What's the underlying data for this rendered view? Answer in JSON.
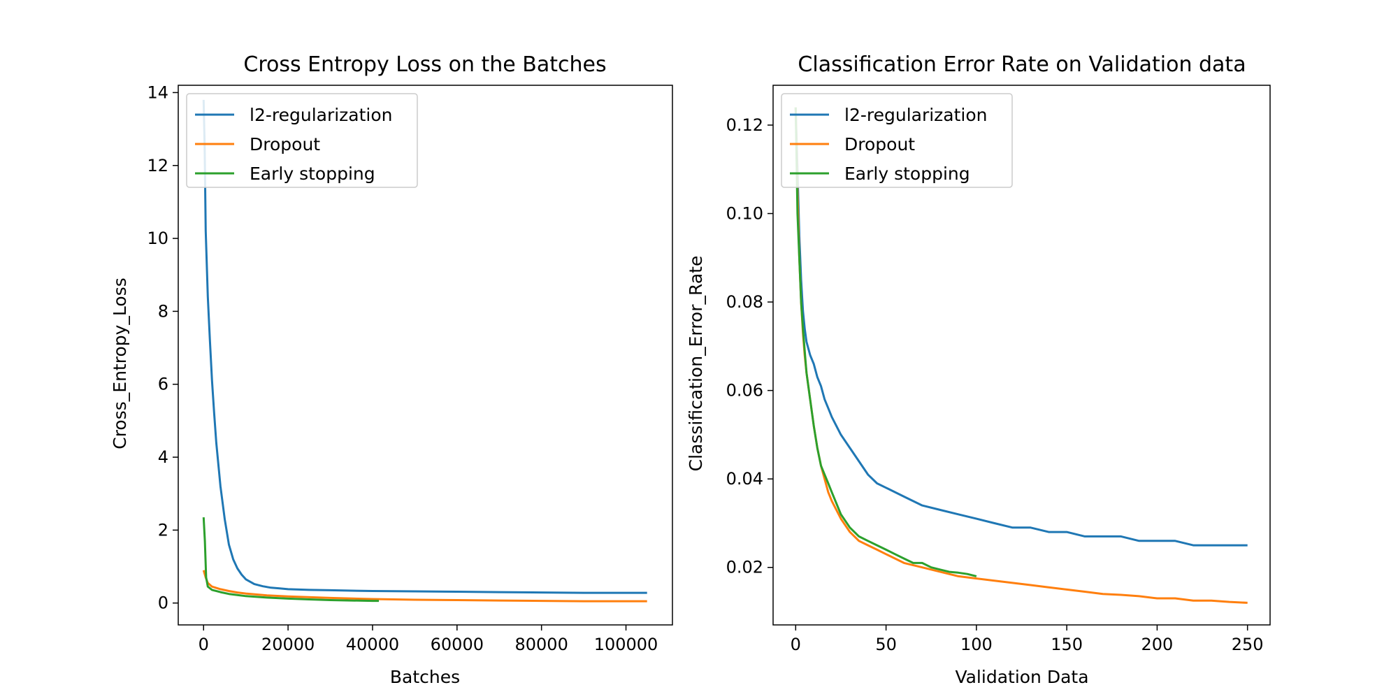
{
  "colors": {
    "l2": "#1f77b4",
    "dropout": "#ff7f0e",
    "early": "#2ca02c"
  },
  "chart_data": [
    {
      "type": "line",
      "title": "Cross Entropy Loss on the Batches",
      "xlabel": "Batches",
      "ylabel": "Cross_Entropy_Loss",
      "xlim": [
        -6000,
        111000
      ],
      "ylim": [
        -0.6,
        14.2
      ],
      "xticks": [
        0,
        20000,
        40000,
        60000,
        80000,
        100000
      ],
      "yticks": [
        0,
        2,
        4,
        6,
        8,
        10,
        12,
        14
      ],
      "legend": "top-left",
      "series": [
        {
          "name": "l2-regularization",
          "color_key": "l2",
          "x": [
            0,
            250,
            500,
            750,
            1000,
            1500,
            2000,
            2500,
            3000,
            3500,
            4000,
            5000,
            6000,
            7000,
            8000,
            9000,
            10000,
            12000,
            14000,
            16000,
            18000,
            20000,
            25000,
            30000,
            35000,
            40000,
            50000,
            60000,
            70000,
            80000,
            90000,
            100000,
            105000
          ],
          "y": [
            13.8,
            12.5,
            10.2,
            9.3,
            8.4,
            7.2,
            6.1,
            5.2,
            4.4,
            3.8,
            3.2,
            2.3,
            1.6,
            1.2,
            0.95,
            0.78,
            0.65,
            0.52,
            0.46,
            0.42,
            0.4,
            0.38,
            0.36,
            0.35,
            0.34,
            0.33,
            0.32,
            0.31,
            0.3,
            0.29,
            0.28,
            0.28,
            0.28
          ]
        },
        {
          "name": "Dropout",
          "color_key": "dropout",
          "x": [
            0,
            500,
            1000,
            2000,
            4000,
            6000,
            8000,
            10000,
            15000,
            20000,
            30000,
            40000,
            50000,
            60000,
            70000,
            80000,
            90000,
            100000,
            105000
          ],
          "y": [
            0.9,
            0.7,
            0.55,
            0.45,
            0.38,
            0.33,
            0.29,
            0.26,
            0.21,
            0.18,
            0.14,
            0.11,
            0.09,
            0.08,
            0.07,
            0.06,
            0.05,
            0.05,
            0.05
          ]
        },
        {
          "name": "Early stopping",
          "color_key": "early",
          "x": [
            0,
            300,
            600,
            1000,
            2000,
            4000,
            6000,
            8000,
            10000,
            15000,
            20000,
            25000,
            30000,
            35000,
            40000,
            41500
          ],
          "y": [
            2.35,
            1.7,
            0.7,
            0.45,
            0.36,
            0.3,
            0.25,
            0.22,
            0.19,
            0.15,
            0.12,
            0.1,
            0.08,
            0.07,
            0.06,
            0.06
          ]
        }
      ]
    },
    {
      "type": "line",
      "title": "Classification Error Rate on Validation data",
      "xlabel": "Validation Data",
      "ylabel": "Classification_Error_Rate",
      "xlim": [
        -12.5,
        262.5
      ],
      "ylim": [
        0.007,
        0.129
      ],
      "xticks": [
        0,
        50,
        100,
        150,
        200,
        250
      ],
      "yticks": [
        0.02,
        0.04,
        0.06,
        0.08,
        0.1,
        0.12
      ],
      "ytick_labels": [
        "0.02",
        "0.04",
        "0.06",
        "0.08",
        "0.10",
        "0.12"
      ],
      "legend": "top-left",
      "series": [
        {
          "name": "l2-regularization",
          "color_key": "l2",
          "x": [
            0,
            1,
            2,
            3,
            4,
            5,
            6,
            8,
            10,
            12,
            14,
            16,
            18,
            20,
            25,
            30,
            35,
            40,
            45,
            50,
            60,
            70,
            80,
            90,
            100,
            110,
            120,
            130,
            140,
            150,
            160,
            170,
            180,
            190,
            200,
            210,
            220,
            230,
            240,
            250
          ],
          "y": [
            0.124,
            0.11,
            0.095,
            0.085,
            0.078,
            0.074,
            0.071,
            0.068,
            0.066,
            0.063,
            0.061,
            0.058,
            0.056,
            0.054,
            0.05,
            0.047,
            0.044,
            0.041,
            0.039,
            0.038,
            0.036,
            0.034,
            0.033,
            0.032,
            0.031,
            0.03,
            0.029,
            0.029,
            0.028,
            0.028,
            0.027,
            0.027,
            0.027,
            0.026,
            0.026,
            0.026,
            0.025,
            0.025,
            0.025,
            0.025
          ]
        },
        {
          "name": "Dropout",
          "color_key": "dropout",
          "x": [
            0,
            1,
            2,
            3,
            4,
            5,
            6,
            8,
            10,
            12,
            14,
            16,
            18,
            20,
            25,
            30,
            35,
            40,
            45,
            50,
            60,
            70,
            80,
            90,
            100,
            110,
            120,
            130,
            140,
            150,
            160,
            170,
            180,
            190,
            200,
            210,
            220,
            230,
            240,
            250
          ],
          "y": [
            0.124,
            0.105,
            0.09,
            0.08,
            0.073,
            0.068,
            0.064,
            0.058,
            0.052,
            0.047,
            0.043,
            0.04,
            0.037,
            0.035,
            0.031,
            0.028,
            0.026,
            0.025,
            0.024,
            0.023,
            0.021,
            0.02,
            0.019,
            0.018,
            0.0175,
            0.017,
            0.0165,
            0.016,
            0.0155,
            0.015,
            0.0145,
            0.014,
            0.0138,
            0.0135,
            0.013,
            0.013,
            0.0125,
            0.0125,
            0.0122,
            0.012
          ]
        },
        {
          "name": "Early stopping",
          "color_key": "early",
          "x": [
            0,
            1,
            2,
            3,
            4,
            5,
            6,
            8,
            10,
            12,
            14,
            16,
            18,
            20,
            25,
            30,
            35,
            40,
            45,
            50,
            55,
            60,
            65,
            70,
            75,
            80,
            85,
            90,
            95,
            100
          ],
          "y": [
            0.124,
            0.1,
            0.09,
            0.08,
            0.074,
            0.069,
            0.064,
            0.058,
            0.052,
            0.047,
            0.043,
            0.041,
            0.039,
            0.037,
            0.032,
            0.029,
            0.027,
            0.026,
            0.025,
            0.024,
            0.023,
            0.022,
            0.021,
            0.021,
            0.02,
            0.0195,
            0.019,
            0.0188,
            0.0185,
            0.018
          ]
        }
      ]
    }
  ]
}
